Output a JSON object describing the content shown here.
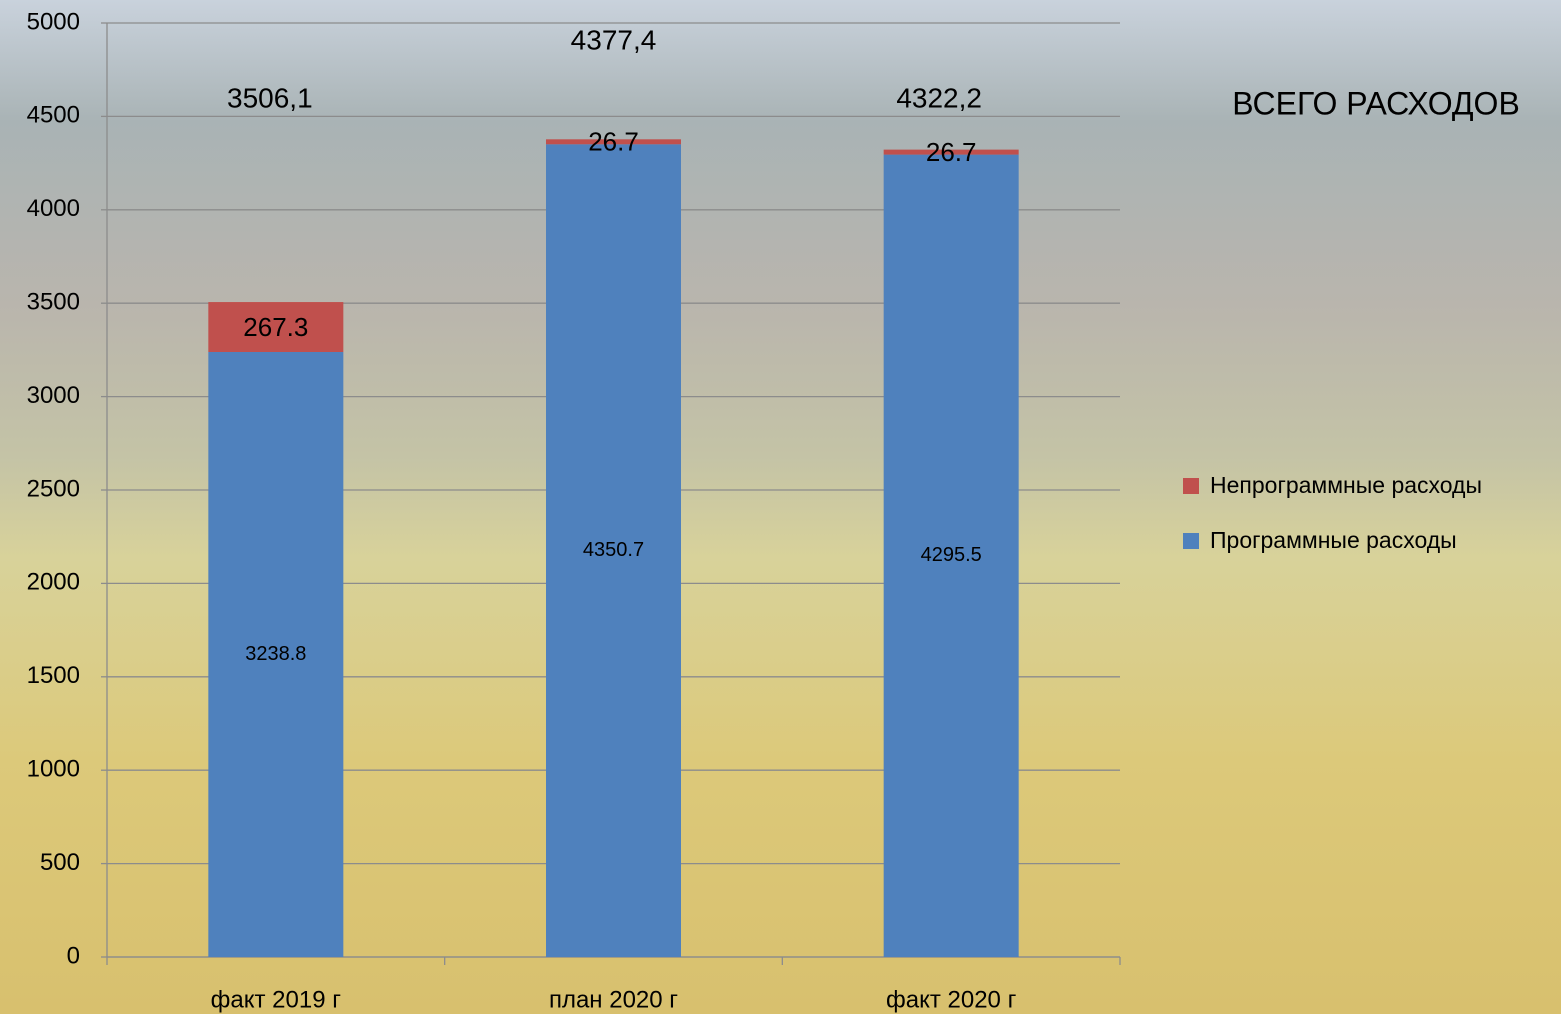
{
  "chart_data": {
    "type": "stacked_bar",
    "title": "ВСЕГО РАСХОДОВ",
    "categories": [
      "факт 2019 г",
      "план 2020 г",
      "факт 2020 г"
    ],
    "series": [
      {
        "name": "Программные расходы",
        "color": "#4f81bd",
        "values": [
          3238.8,
          4350.7,
          4295.5
        ]
      },
      {
        "name": "Непрограммные расходы",
        "color": "#c0504d",
        "values": [
          267.3,
          26.7,
          26.7
        ]
      }
    ],
    "total_labels": [
      "3506,1",
      "4377,4",
      "4322,2"
    ],
    "ylim": [
      0,
      5000
    ],
    "yticks": [
      0,
      500,
      1000,
      1500,
      2000,
      2500,
      3000,
      3500,
      4000,
      4500,
      5000
    ],
    "grid": true,
    "legend": "right"
  }
}
